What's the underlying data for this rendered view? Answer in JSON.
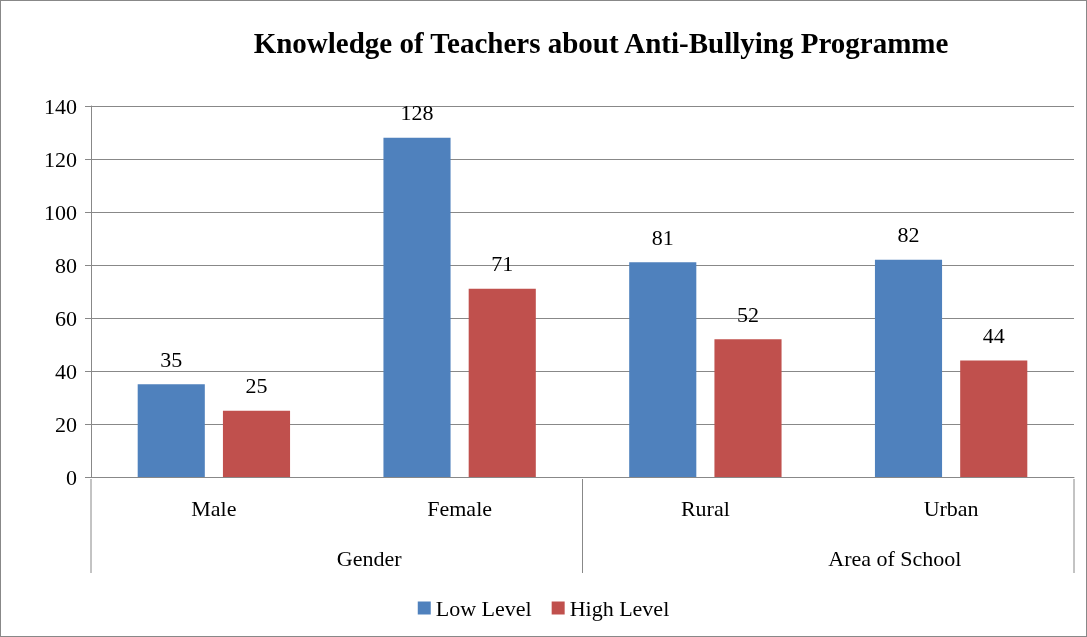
{
  "chart_data": {
    "type": "bar",
    "title": "Knowledge of Teachers about Anti-Bullying Programme",
    "categories": [
      "Male",
      "Female",
      "Rural",
      "Urban"
    ],
    "series": [
      {
        "name": "Low Level",
        "color": "#4f81bd",
        "values": [
          35,
          128,
          81,
          82
        ]
      },
      {
        "name": "High Level",
        "color": "#c0504d",
        "values": [
          25,
          71,
          52,
          44
        ]
      }
    ],
    "ylim": [
      0,
      140
    ],
    "yticks": [
      0,
      20,
      40,
      60,
      80,
      100,
      120,
      140
    ],
    "grid": "y",
    "legend": "bottom",
    "data_labels": true,
    "annotations": [
      "Gender",
      "Area of School"
    ]
  }
}
